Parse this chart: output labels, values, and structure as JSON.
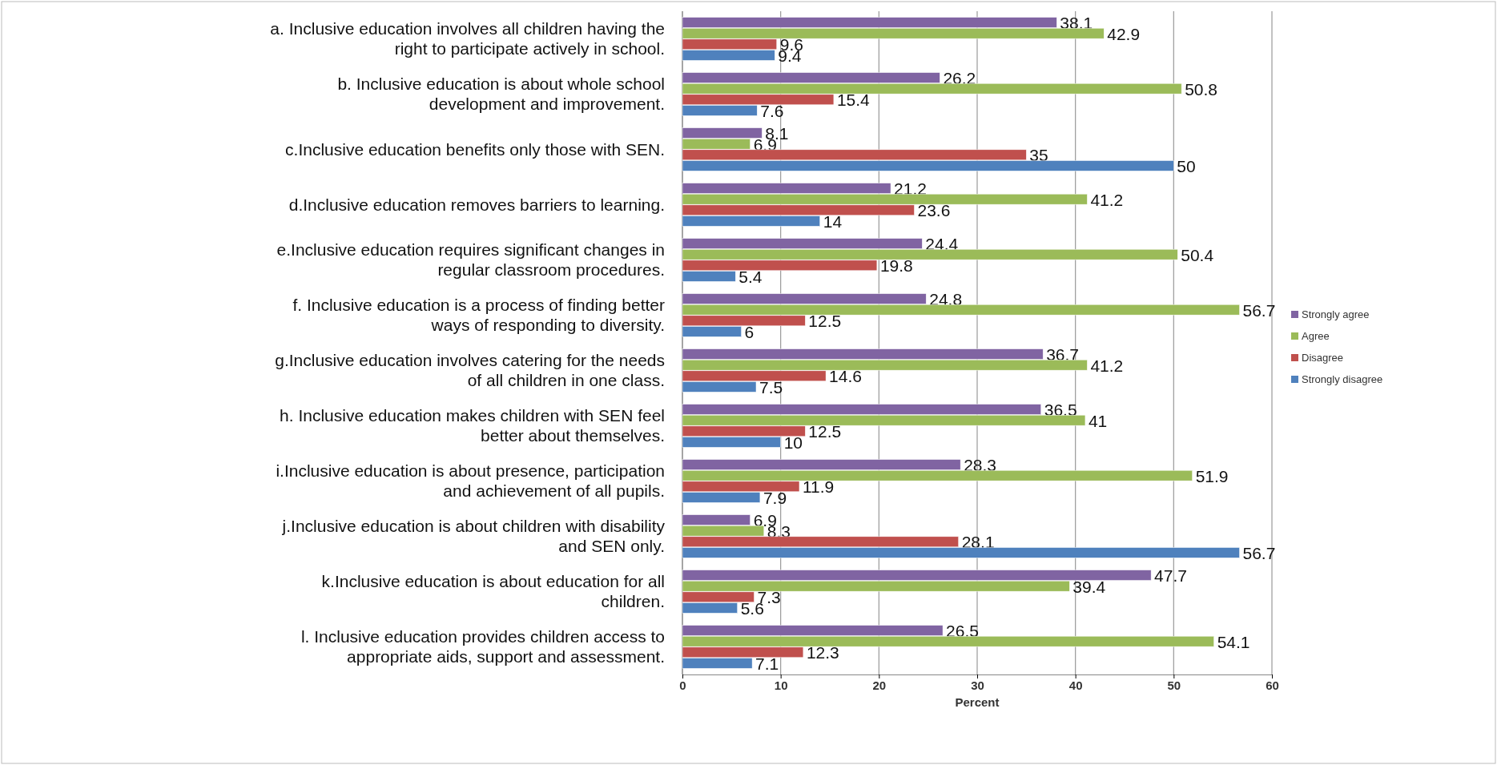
{
  "chart_data": {
    "type": "bar",
    "orientation": "horizontal",
    "xlabel": "Percent",
    "categories": [
      "a.  Inclusive education involves all children having the\nright to participate actively in school.",
      "b. Inclusive education is about whole school\ndevelopment and improvement.",
      "c.Inclusive education benefits only those with SEN.",
      "d.Inclusive education removes barriers to learning.",
      "e.Inclusive education requires significant changes in\nregular classroom procedures.",
      "f. Inclusive education is a process of finding better\nways of responding to diversity.",
      "g.Inclusive education involves catering for the needs\nof all children in one class.",
      "h. Inclusive education makes children with SEN feel\nbetter about themselves.",
      "i.Inclusive education is about presence, participation\nand achievement of all pupils.",
      "j.Inclusive education is about children with disability\nand SEN only.",
      "k.Inclusive education is about education for all\nchildren.",
      "l. Inclusive education provides children access to\nappropriate aids, support and assessment."
    ],
    "series": [
      {
        "name": "Strongly agree",
        "color": "#8064a2",
        "values": [
          38.1,
          26.2,
          8.1,
          21.2,
          24.4,
          24.8,
          36.7,
          36.5,
          28.3,
          6.9,
          47.7,
          26.5
        ]
      },
      {
        "name": "Agree",
        "color": "#9bbb59",
        "values": [
          42.9,
          50.8,
          6.9,
          41.2,
          50.4,
          56.7,
          41.2,
          41,
          51.9,
          8.3,
          39.4,
          54.1
        ]
      },
      {
        "name": "Disagree",
        "color": "#c0504d",
        "values": [
          9.6,
          15.4,
          35,
          23.6,
          19.8,
          12.5,
          14.6,
          12.5,
          11.9,
          28.1,
          7.3,
          12.3
        ]
      },
      {
        "name": "Strongly disagree",
        "color": "#4f81bd",
        "values": [
          9.4,
          7.6,
          50,
          14,
          5.4,
          6,
          7.5,
          10,
          7.9,
          56.7,
          5.6,
          7.1
        ]
      }
    ],
    "xlim": [
      0,
      60
    ],
    "xticks": [
      0,
      10,
      20,
      30,
      40,
      50,
      60
    ],
    "grid": "x",
    "legend": "right",
    "data_labels": true
  }
}
